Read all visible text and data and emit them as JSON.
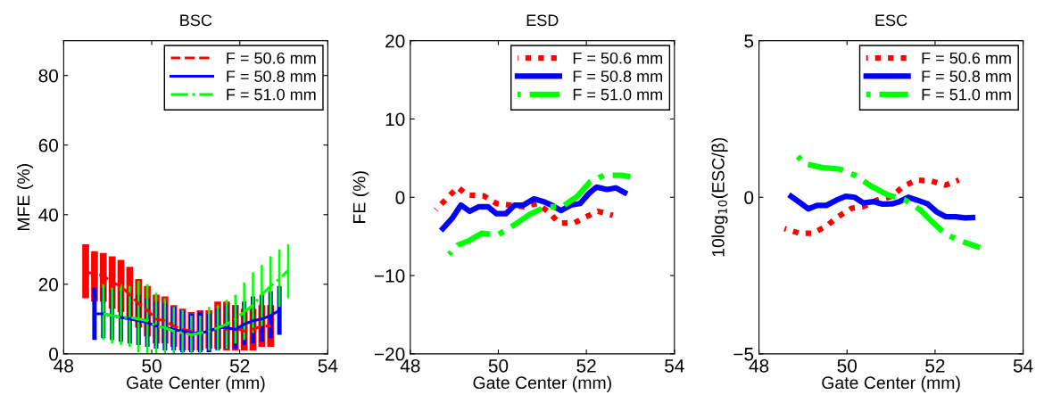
{
  "chart_data": [
    {
      "type": "line",
      "title": "BSC",
      "xlabel": "Gate Center (mm)",
      "ylabel": "MFE (%)",
      "xlim": [
        48,
        54
      ],
      "xticks": [
        48,
        50,
        52,
        54
      ],
      "ylim": [
        0,
        90
      ],
      "yticks": [
        0,
        20,
        40,
        60,
        80
      ],
      "legend": "top right",
      "grid": false,
      "marker": "none",
      "series": [
        {
          "name": "F = 50.6 mm",
          "color": "#ff0000",
          "line_style": "dashed",
          "x": [
            48.5,
            48.7,
            48.9,
            49.1,
            49.3,
            49.5,
            49.7,
            49.9,
            50.1,
            50.3,
            50.5,
            50.7,
            50.9,
            51.1,
            51.3,
            51.5,
            51.7,
            51.9,
            52.1,
            52.3,
            52.5,
            52.7
          ],
          "values": [
            23.5,
            23,
            22.5,
            20.5,
            19.5,
            17,
            14.5,
            12.5,
            10,
            9.5,
            8,
            7,
            6.5,
            6,
            6.5,
            7.5,
            7,
            7.5,
            6.5,
            7,
            8,
            8
          ],
          "errors": [
            [
              16,
              31.5
            ],
            [
              15,
              29.5
            ],
            [
              15,
              29
            ],
            [
              13,
              28
            ],
            [
              12,
              27
            ],
            [
              10,
              25
            ],
            [
              7.5,
              21.5
            ],
            [
              5,
              19.5
            ],
            [
              3,
              17
            ],
            [
              3,
              16.5
            ],
            [
              2,
              14
            ],
            [
              1,
              13
            ],
            [
              1,
              12
            ],
            [
              1,
              12.5
            ],
            [
              1.5,
              12.5
            ],
            [
              1.5,
              15
            ],
            [
              1,
              15
            ],
            [
              1,
              14
            ],
            [
              1,
              13
            ],
            [
              1,
              13
            ],
            [
              2,
              14
            ],
            [
              2,
              14
            ]
          ]
        },
        {
          "name": "F = 50.8 mm",
          "color": "#0000ff",
          "line_style": "solid",
          "x": [
            48.7,
            48.9,
            49.1,
            49.3,
            49.5,
            49.7,
            49.9,
            50.1,
            50.3,
            50.5,
            50.7,
            50.9,
            51.1,
            51.3,
            51.5,
            51.7,
            51.9,
            52.1,
            52.3,
            52.5,
            52.7,
            52.9
          ],
          "values": [
            11.5,
            11.5,
            11,
            10.5,
            10,
            9.5,
            9,
            8,
            7.5,
            7,
            6.5,
            6,
            6,
            6.5,
            7.5,
            7.5,
            7,
            8.5,
            9.5,
            10,
            11,
            12.5
          ],
          "errors": [
            [
              4,
              19
            ],
            [
              4.5,
              19
            ],
            [
              4,
              18.5
            ],
            [
              3.5,
              18
            ],
            [
              3,
              17.5
            ],
            [
              2.5,
              17
            ],
            [
              2,
              16
            ],
            [
              1.5,
              15
            ],
            [
              1,
              14.5
            ],
            [
              1,
              13.5
            ],
            [
              0.5,
              12.5
            ],
            [
              0.5,
              11.5
            ],
            [
              0.5,
              12
            ],
            [
              0.5,
              11.5
            ],
            [
              1,
              13
            ],
            [
              1.5,
              14
            ],
            [
              1.5,
              14
            ],
            [
              2.5,
              15
            ],
            [
              3,
              16.5
            ],
            [
              3.5,
              17
            ],
            [
              4.5,
              18
            ],
            [
              5.5,
              19.5
            ]
          ]
        },
        {
          "name": "F = 51.0 mm",
          "color": "#00ff00",
          "line_style": "dashdot",
          "x": [
            48.9,
            49.1,
            49.3,
            49.5,
            49.7,
            49.9,
            50.1,
            50.3,
            50.5,
            50.7,
            50.9,
            51.1,
            51.3,
            51.5,
            51.7,
            51.9,
            52.1,
            52.3,
            52.5,
            52.7,
            52.9,
            53.1
          ],
          "values": [
            11.5,
            11,
            10.5,
            10.5,
            10,
            9.5,
            8,
            7.5,
            6.5,
            6,
            5.5,
            6,
            6.5,
            7.5,
            8.5,
            10,
            12,
            14,
            17,
            19.5,
            21.5,
            24
          ],
          "errors": [
            [
              4,
              20
            ],
            [
              3,
              19
            ],
            [
              2.5,
              20
            ],
            [
              2,
              19.5
            ],
            [
              0.5,
              21
            ],
            [
              0,
              20
            ],
            [
              0,
              17.5
            ],
            [
              0,
              16
            ],
            [
              0,
              13.5
            ],
            [
              0,
              12.5
            ],
            [
              0,
              11
            ],
            [
              0,
              11
            ],
            [
              1,
              13.5
            ],
            [
              1,
              14
            ],
            [
              1.5,
              15.5
            ],
            [
              3,
              17
            ],
            [
              4,
              20.5
            ],
            [
              6,
              23.5
            ],
            [
              8,
              25.5
            ],
            [
              11,
              28
            ],
            [
              13.5,
              30
            ],
            [
              16,
              31.5
            ]
          ]
        }
      ]
    },
    {
      "type": "line",
      "title": "ESD",
      "xlabel": "Gate Center (mm)",
      "ylabel": "FE (%)",
      "xlim": [
        48,
        54
      ],
      "xticks": [
        48,
        50,
        52,
        54
      ],
      "ylim": [
        -20,
        20
      ],
      "yticks": [
        {
          "value": -20,
          "label": "−20"
        },
        {
          "value": -10,
          "label": "−10"
        },
        0,
        10,
        20
      ],
      "legend": "top right",
      "grid": false,
      "marker": "none",
      "series": [
        {
          "name": "F = 50.6 mm",
          "color": "#ff0000",
          "line_style": "dotted",
          "x": [
            48.58,
            49.08,
            49.28,
            49.66,
            49.96,
            50.27,
            50.57,
            50.88,
            51.15,
            51.38,
            51.72,
            51.99,
            52.26,
            52.6
          ],
          "values": [
            -1.6,
            1.3,
            0.3,
            0.2,
            -0.8,
            -1,
            -1.2,
            -0.8,
            -1.9,
            -3.3,
            -3.3,
            -2.5,
            -1.8,
            -2.3
          ]
        },
        {
          "name": "F = 50.8 mm",
          "color": "#0000ff",
          "line_style": "solid",
          "x": [
            48.74,
            48.95,
            49.15,
            49.35,
            49.56,
            49.76,
            49.96,
            50.17,
            50.37,
            50.57,
            50.81,
            51.05,
            51.21,
            51.42,
            51.65,
            51.86,
            52.06,
            52.23,
            52.47,
            52.67,
            52.87
          ],
          "values": [
            -4,
            -2.7,
            -1,
            -1.8,
            -1.2,
            -1.2,
            -2.1,
            -2.1,
            -1,
            -1,
            -0.2,
            -0.6,
            -1,
            -1.7,
            -1,
            -0.8,
            0.5,
            1.3,
            1,
            1.2,
            0.6
          ]
        },
        {
          "name": "F = 51.0 mm",
          "color": "#00ff00",
          "line_style": "dashdot",
          "x": [
            48.88,
            49.08,
            49.35,
            49.62,
            49.99,
            50.37,
            50.71,
            51.08,
            51.45,
            51.79,
            52.09,
            52.4,
            52.8,
            53.0
          ],
          "values": [
            -7.3,
            -6.1,
            -5.5,
            -4.6,
            -4.8,
            -3.5,
            -2.2,
            -1.2,
            -1.2,
            0.1,
            2,
            2.8,
            2.8,
            2.6
          ]
        }
      ]
    },
    {
      "type": "line",
      "title": "ESC",
      "xlabel": "Gate Center (mm)",
      "ylabel": "10log$_{10}$(ESC/β)",
      "xlim": [
        48,
        54
      ],
      "xticks": [
        48,
        50,
        52,
        54
      ],
      "ylim": [
        -5,
        5
      ],
      "yticks": [
        {
          "value": -5,
          "label": "−5"
        },
        0,
        5
      ],
      "legend": "top right",
      "grid": false,
      "marker": "none",
      "series": [
        {
          "name": "F = 50.6 mm",
          "color": "#ff0000",
          "line_style": "dotted",
          "x": [
            48.58,
            48.92,
            49.22,
            49.53,
            49.8,
            50.1,
            50.37,
            50.68,
            51.02,
            51.29,
            51.59,
            51.9,
            52.24,
            52.54
          ],
          "values": [
            -1.0,
            -1.15,
            -1.15,
            -0.92,
            -0.62,
            -0.35,
            -0.3,
            -0.09,
            0.03,
            0.36,
            0.55,
            0.52,
            0.39,
            0.55
          ]
        },
        {
          "name": "F = 50.8 mm",
          "color": "#0000ff",
          "line_style": "solid",
          "x": [
            48.73,
            48.92,
            49.12,
            49.32,
            49.53,
            49.76,
            49.97,
            50.17,
            50.37,
            50.61,
            50.81,
            51.02,
            51.19,
            51.39,
            51.59,
            51.83,
            52.03,
            52.24,
            52.47,
            52.68,
            52.85
          ],
          "values": [
            0.03,
            -0.16,
            -0.37,
            -0.26,
            -0.26,
            -0.09,
            0.03,
            0,
            -0.18,
            -0.14,
            -0.22,
            -0.21,
            -0.14,
            0,
            -0.09,
            -0.21,
            -0.46,
            -0.62,
            -0.62,
            -0.66,
            -0.65
          ]
        },
        {
          "name": "F = 51.0 mm",
          "color": "#00ff00",
          "line_style": "dashdot",
          "x": [
            48.88,
            49.05,
            49.42,
            49.83,
            50.2,
            50.54,
            50.92,
            51.32,
            51.66,
            51.93,
            52.24,
            52.61,
            53.02
          ],
          "values": [
            1.3,
            1.07,
            0.95,
            0.9,
            0.69,
            0.36,
            0.08,
            -0.09,
            -0.4,
            -0.78,
            -1.18,
            -1.41,
            -1.61
          ]
        }
      ]
    }
  ]
}
